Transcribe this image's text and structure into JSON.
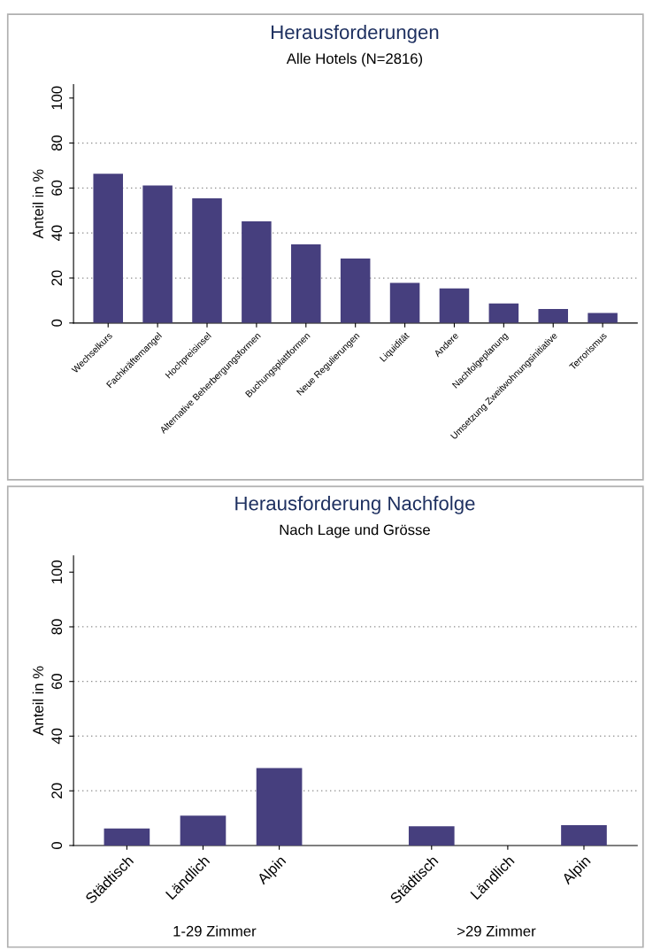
{
  "chart_data": [
    {
      "type": "bar",
      "title": "Herausforderungen",
      "subtitle": "Alle Hotels (N=2816)",
      "ylabel": "Anteil in %",
      "categories": [
        "Wechselkurs",
        "Fachkräftemangel",
        "Hochpreisinsel",
        "Alternative Beherbergungsformen",
        "Buchungsplattformen",
        "Neue Regulierungen",
        "Liquidität",
        "Andere",
        "Nachfolgeplanung",
        "Umsetzung Zweitwohnungsinitiative",
        "Terrorismus"
      ],
      "values": [
        66.3,
        61.1,
        55.4,
        45.2,
        35.0,
        28.7,
        17.8,
        15.4,
        8.7,
        6.2,
        4.5
      ],
      "color": "#463f7e",
      "ylim": [
        0,
        106
      ],
      "yticks": [
        0,
        20,
        40,
        60,
        80,
        100
      ],
      "grid": "y",
      "legend": false
    },
    {
      "type": "bar",
      "title": "Herausforderung Nachfolge",
      "subtitle": "Nach Lage und Grösse",
      "ylabel": "Anteil in %",
      "categories": [
        "Städtisch",
        "Ländlich",
        "Alpin",
        null,
        "Städtisch",
        "Ländlich",
        "Alpin"
      ],
      "values": [
        6.2,
        10.9,
        28.3,
        null,
        7.0,
        0,
        7.4
      ],
      "color": "#463f7e",
      "ylim": [
        0,
        106
      ],
      "yticks": [
        0,
        20,
        40,
        60,
        80,
        100
      ],
      "grid": "y",
      "legend": false,
      "annotations": [
        "1-29 Zimmer",
        ">29 Zimmer"
      ]
    }
  ]
}
